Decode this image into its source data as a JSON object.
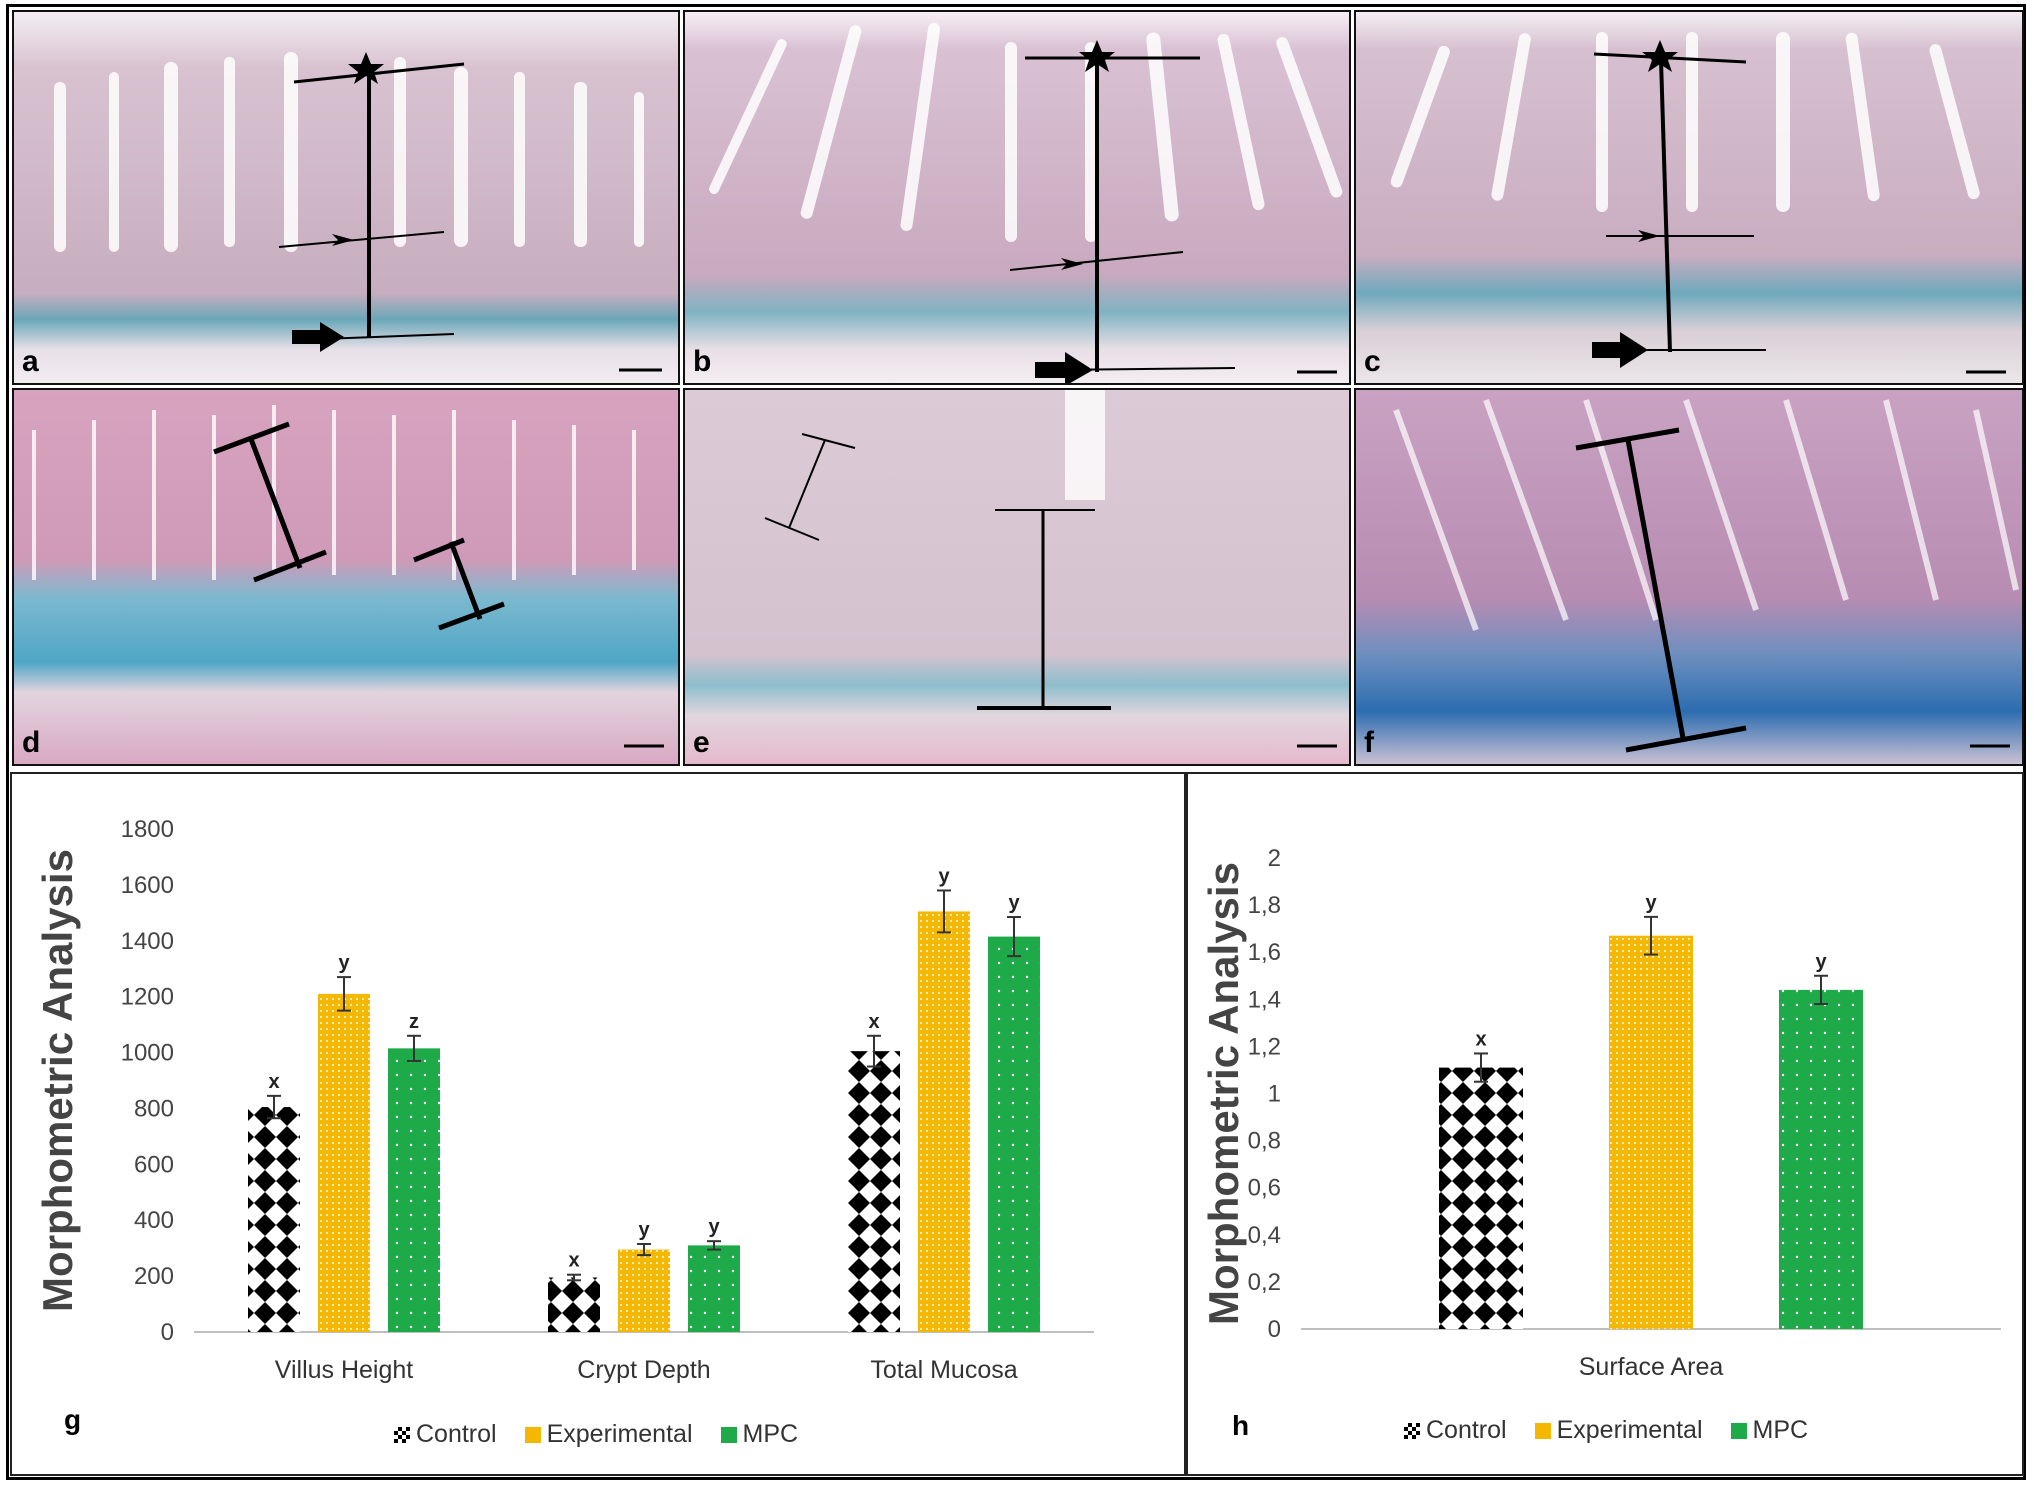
{
  "panels": [
    {
      "letter": "a"
    },
    {
      "letter": "b"
    },
    {
      "letter": "c"
    },
    {
      "letter": "d"
    },
    {
      "letter": "e"
    },
    {
      "letter": "f"
    }
  ],
  "chart_g": {
    "panel_letter": "g"
  },
  "chart_h": {
    "panel_letter": "h"
  },
  "legend": {
    "control": "Control",
    "experimental": "Experimental",
    "mpc": "MPC"
  },
  "colors": {
    "control": "#000000",
    "experimental": "#f5b800",
    "mpc": "#1faa4a"
  },
  "chart_data": [
    {
      "type": "bar",
      "ylabel": "Morphometric Analysis",
      "categories": [
        "Villus Height",
        "Crypt Depth",
        "Total Mucosa"
      ],
      "ylim": [
        0,
        1800
      ],
      "yticks": [
        0,
        200,
        400,
        600,
        800,
        1000,
        1200,
        1400,
        1600,
        1800
      ],
      "series": [
        {
          "name": "Control",
          "values": [
            805,
            195,
            1005
          ],
          "errors": [
            40,
            10,
            55
          ],
          "labels": [
            "x",
            "x",
            "x"
          ]
        },
        {
          "name": "Experimental",
          "values": [
            1210,
            295,
            1505
          ],
          "errors": [
            60,
            20,
            75
          ],
          "labels": [
            "y",
            "y",
            "y"
          ]
        },
        {
          "name": "MPC",
          "values": [
            1015,
            310,
            1415
          ],
          "errors": [
            45,
            15,
            70
          ],
          "labels": [
            "z",
            "y",
            "y"
          ]
        }
      ],
      "legend_position": "bottom"
    },
    {
      "type": "bar",
      "ylabel": "Morphometric Analysis",
      "categories": [
        "Surface Area"
      ],
      "ylim": [
        0,
        2
      ],
      "yticks": [
        "0",
        "0,2",
        "0,4",
        "0,6",
        "0,8",
        "1",
        "1,2",
        "1,4",
        "1,6",
        "1,8",
        "2"
      ],
      "series": [
        {
          "name": "Control",
          "values": [
            1.11
          ],
          "errors": [
            0.06
          ],
          "labels": [
            "x"
          ]
        },
        {
          "name": "Experimental",
          "values": [
            1.67
          ],
          "errors": [
            0.08
          ],
          "labels": [
            "y"
          ]
        },
        {
          "name": "MPC",
          "values": [
            1.44
          ],
          "errors": [
            0.06
          ],
          "labels": [
            "y"
          ]
        }
      ],
      "legend_position": "bottom"
    }
  ]
}
